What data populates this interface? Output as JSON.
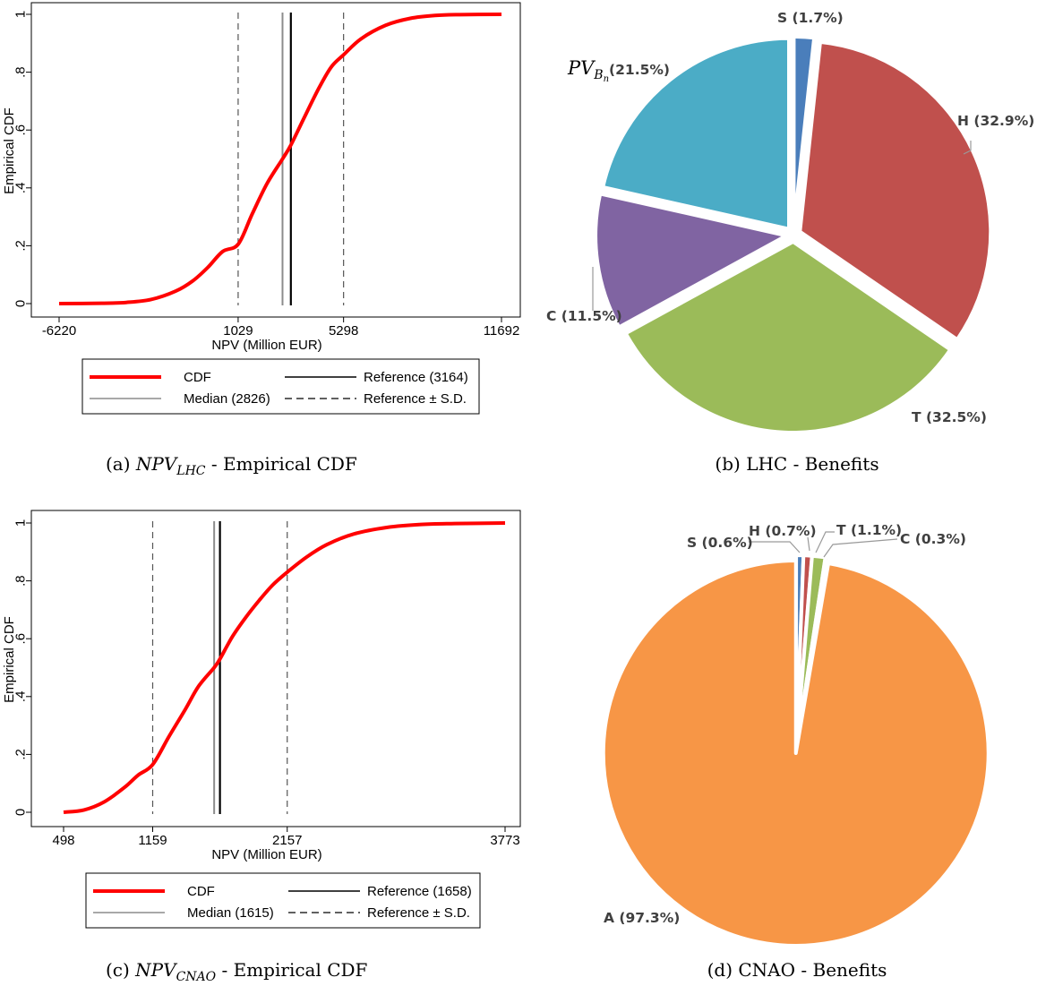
{
  "chart_data": [
    {
      "id": "a",
      "type": "line",
      "caption_prefix": "(a)",
      "caption_math": "NPV",
      "caption_sub": "LHC",
      "caption_suffix": "- Empirical CDF",
      "xlabel": "NPV (Million EUR)",
      "ylabel": "Empirical CDF",
      "xlim": [
        -6220,
        11692
      ],
      "ylim": [
        0,
        1
      ],
      "xticks": [
        -6220,
        1029,
        5298,
        11692
      ],
      "yticks": [
        0,
        0.2,
        0.4,
        0.6,
        0.8,
        1
      ],
      "ytick_labels": [
        "0",
        ".2",
        ".4",
        ".6",
        ".8",
        "1"
      ],
      "grid": false,
      "series": [
        {
          "name": "CDF",
          "color": "#ff0000",
          "x": [
            -6220,
            -4500,
            -3500,
            -2500,
            -1500,
            -800,
            -200,
            400,
            1029,
            1600,
            2200,
            2826,
            3164,
            3700,
            4300,
            4800,
            5298,
            6000,
            7000,
            8000,
            9000,
            10000,
            11692
          ],
          "y": [
            0,
            0.001,
            0.004,
            0.014,
            0.043,
            0.079,
            0.125,
            0.18,
            0.205,
            0.31,
            0.415,
            0.5,
            0.548,
            0.642,
            0.745,
            0.818,
            0.86,
            0.915,
            0.962,
            0.986,
            0.996,
            0.999,
            1.0
          ]
        }
      ],
      "reference_lines": [
        {
          "name": "Median",
          "value": 2826,
          "style": "solid",
          "color": "#8c8c8c"
        },
        {
          "name": "Reference",
          "value": 3164,
          "style": "solid",
          "color": "#000000"
        },
        {
          "name": "Reference ± S.D.",
          "value": 1029,
          "style": "dashed",
          "color": "#555555"
        },
        {
          "name": "Reference ± S.D.",
          "value": 5298,
          "style": "dashed",
          "color": "#555555"
        }
      ],
      "legend": [
        {
          "label": "CDF",
          "style": "thick-red"
        },
        {
          "label": "Reference (3164)",
          "style": "solid-black"
        },
        {
          "label": "Median (2826)",
          "style": "solid-gray"
        },
        {
          "label": "Reference ± S.D.",
          "style": "dashed"
        }
      ],
      "legend_position": "bottom"
    },
    {
      "id": "b",
      "type": "pie",
      "caption": "(b) LHC - Benefits",
      "exploded": true,
      "slices": [
        {
          "name": "S",
          "label": "S (1.7%)",
          "value": 1.7,
          "color": "#4a7ebb"
        },
        {
          "name": "H",
          "label": "H (32.9%)",
          "value": 32.9,
          "color": "#c0504d"
        },
        {
          "name": "T",
          "label": "T (32.5%)",
          "value": 32.5,
          "color": "#9bbb59"
        },
        {
          "name": "C",
          "label": "C (11.5%)",
          "value": 11.5,
          "color": "#8064a2"
        },
        {
          "name": "PV_Bn",
          "label_main": "PV",
          "label_sub": "B",
          "label_subsub": "n",
          "label_pct": "(21.5%)",
          "value": 21.5,
          "color": "#4bacc6"
        }
      ]
    },
    {
      "id": "c",
      "type": "line",
      "caption_prefix": "(c)",
      "caption_math": "NPV",
      "caption_sub": "CNAO",
      "caption_suffix": "- Empirical CDF",
      "xlabel": "NPV (Million EUR)",
      "ylabel": "Empirical CDF",
      "xlim": [
        498,
        3773
      ],
      "ylim": [
        0,
        1
      ],
      "xticks": [
        498,
        1159,
        2157,
        3773
      ],
      "yticks": [
        0,
        0.2,
        0.4,
        0.6,
        0.8,
        1
      ],
      "ytick_labels": [
        "0",
        ".2",
        ".4",
        ".6",
        ".8",
        "1"
      ],
      "grid": false,
      "series": [
        {
          "name": "CDF",
          "color": "#ff0000",
          "x": [
            498,
            650,
            800,
            950,
            1050,
            1159,
            1280,
            1400,
            1500,
            1615,
            1658,
            1750,
            1850,
            1950,
            2050,
            2157,
            2300,
            2450,
            2650,
            2900,
            3150,
            3400,
            3773
          ],
          "y": [
            0,
            0.008,
            0.036,
            0.086,
            0.128,
            0.165,
            0.262,
            0.355,
            0.436,
            0.5,
            0.53,
            0.607,
            0.674,
            0.733,
            0.786,
            0.83,
            0.882,
            0.925,
            0.962,
            0.985,
            0.995,
            0.998,
            1.0
          ]
        }
      ],
      "reference_lines": [
        {
          "name": "Median",
          "value": 1615,
          "style": "solid",
          "color": "#8c8c8c"
        },
        {
          "name": "Reference",
          "value": 1658,
          "style": "solid",
          "color": "#000000"
        },
        {
          "name": "Reference ± S.D.",
          "value": 1159,
          "style": "dashed",
          "color": "#555555"
        },
        {
          "name": "Reference ± S.D.",
          "value": 2157,
          "style": "dashed",
          "color": "#555555"
        }
      ],
      "legend": [
        {
          "label": "CDF",
          "style": "thick-red"
        },
        {
          "label": "Reference (1658)",
          "style": "solid-black"
        },
        {
          "label": "Median (1615)",
          "style": "solid-gray"
        },
        {
          "label": "Reference ± S.D.",
          "style": "dashed"
        }
      ],
      "legend_position": "bottom"
    },
    {
      "id": "d",
      "type": "pie",
      "caption": "(d) CNAO - Benefits",
      "exploded": true,
      "slices": [
        {
          "name": "S",
          "label": "S (0.6%)",
          "value": 0.6,
          "color": "#4a7ebb"
        },
        {
          "name": "H",
          "label": "H (0.7%)",
          "value": 0.7,
          "color": "#c0504d"
        },
        {
          "name": "T",
          "label": "T (1.1%)",
          "value": 1.1,
          "color": "#9bbb59"
        },
        {
          "name": "C",
          "label": "C (0.3%)",
          "value": 0.3,
          "color": "#8064a2"
        },
        {
          "name": "A",
          "label": "A (97.3%)",
          "value": 97.3,
          "color": "#f79646"
        }
      ]
    }
  ]
}
